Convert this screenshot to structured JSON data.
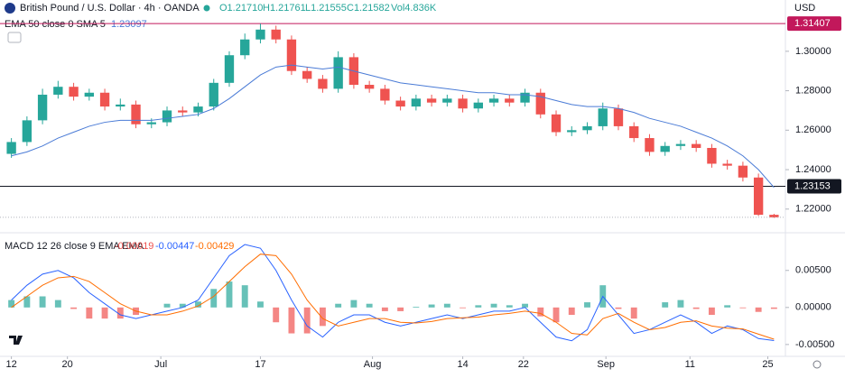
{
  "header": {
    "symbol": "British Pound / U.S. Dollar · 4h · OANDA",
    "ohlc": [
      "O1.21710",
      "H1.21761",
      "L1.21555",
      "C1.21582",
      "Vol4.836K"
    ],
    "currency": "USD"
  },
  "chart_data": [
    {
      "type": "candlestick",
      "up_color": "#26a69a",
      "down_color": "#ef5350",
      "open": [
        1.248,
        1.254,
        1.265,
        1.278,
        1.282,
        1.277,
        1.279,
        1.272,
        1.273,
        1.263,
        1.264,
        1.27,
        1.269,
        1.272,
        1.284,
        1.298,
        1.306,
        1.311,
        1.306,
        1.29,
        1.286,
        1.281,
        1.297,
        1.283,
        1.281,
        1.275,
        1.272,
        1.276,
        1.274,
        1.276,
        1.271,
        1.274,
        1.276,
        1.274,
        1.279,
        1.268,
        1.259,
        1.26,
        1.262,
        1.271,
        1.262,
        1.256,
        1.249,
        1.252,
        1.253,
        1.251,
        1.243,
        1.242,
        1.236,
        1.2171
      ],
      "high": [
        1.256,
        1.267,
        1.281,
        1.285,
        1.284,
        1.281,
        1.281,
        1.276,
        1.275,
        1.266,
        1.272,
        1.272,
        1.274,
        1.286,
        1.3,
        1.309,
        1.314,
        1.313,
        1.308,
        1.292,
        1.288,
        1.3,
        1.299,
        1.285,
        1.283,
        1.277,
        1.278,
        1.278,
        1.278,
        1.278,
        1.276,
        1.278,
        1.278,
        1.281,
        1.281,
        1.27,
        1.262,
        1.264,
        1.274,
        1.273,
        1.264,
        1.258,
        1.254,
        1.255,
        1.255,
        1.253,
        1.245,
        1.244,
        1.238,
        1.21761
      ],
      "low": [
        1.246,
        1.252,
        1.263,
        1.276,
        1.275,
        1.275,
        1.27,
        1.27,
        1.261,
        1.261,
        1.262,
        1.267,
        1.267,
        1.27,
        1.282,
        1.296,
        1.304,
        1.304,
        1.288,
        1.284,
        1.279,
        1.279,
        1.281,
        1.279,
        1.273,
        1.27,
        1.27,
        1.272,
        1.272,
        1.269,
        1.269,
        1.272,
        1.272,
        1.272,
        1.266,
        1.257,
        1.257,
        1.258,
        1.26,
        1.26,
        1.254,
        1.247,
        1.247,
        1.25,
        1.249,
        1.241,
        1.24,
        1.234,
        1.2165,
        1.21555
      ],
      "close": [
        1.254,
        1.265,
        1.278,
        1.282,
        1.277,
        1.279,
        1.272,
        1.273,
        1.263,
        1.264,
        1.27,
        1.269,
        1.272,
        1.284,
        1.298,
        1.306,
        1.311,
        1.306,
        1.29,
        1.286,
        1.281,
        1.297,
        1.283,
        1.281,
        1.275,
        1.272,
        1.276,
        1.274,
        1.276,
        1.271,
        1.274,
        1.276,
        1.274,
        1.279,
        1.268,
        1.259,
        1.26,
        1.262,
        1.271,
        1.262,
        1.256,
        1.249,
        1.252,
        1.253,
        1.251,
        1.243,
        1.242,
        1.236,
        1.2171,
        1.21582
      ],
      "ema": {
        "name": "EMA 50 close 0 SMA 5",
        "color": "#4a7bd6",
        "values": [
          1.247,
          1.249,
          1.252,
          1.256,
          1.259,
          1.262,
          1.264,
          1.265,
          1.265,
          1.265,
          1.266,
          1.267,
          1.268,
          1.271,
          1.276,
          1.282,
          1.288,
          1.292,
          1.293,
          1.292,
          1.291,
          1.292,
          1.29,
          1.288,
          1.286,
          1.284,
          1.283,
          1.282,
          1.281,
          1.28,
          1.279,
          1.279,
          1.278,
          1.278,
          1.277,
          1.275,
          1.273,
          1.272,
          1.272,
          1.271,
          1.269,
          1.266,
          1.264,
          1.262,
          1.259,
          1.256,
          1.252,
          1.247,
          1.24,
          1.23097
        ]
      },
      "levels": [
        {
          "value": 1.31407,
          "color": "#c2185b"
        },
        {
          "value": 1.23153,
          "color": "#131722"
        }
      ],
      "xlim": [
        -0.5,
        49.5
      ],
      "xticks": [
        {
          "value": 0,
          "label": "12"
        },
        {
          "value": 3.6,
          "label": "20"
        },
        {
          "value": 9.6,
          "label": "Jul"
        },
        {
          "value": 16,
          "label": "17"
        },
        {
          "value": 23.2,
          "label": "Aug"
        },
        {
          "value": 29,
          "label": "14"
        },
        {
          "value": 32.9,
          "label": "22"
        },
        {
          "value": 38.2,
          "label": "Sep"
        },
        {
          "value": 43.6,
          "label": "11"
        },
        {
          "value": 48.6,
          "label": "25"
        }
      ],
      "ylim": [
        1.208,
        1.326
      ],
      "yticks": [
        {
          "value": 1.22,
          "label": "1.22000"
        },
        {
          "value": 1.24,
          "label": "1.24000"
        },
        {
          "value": 1.26,
          "label": "1.26000"
        },
        {
          "value": 1.28,
          "label": "1.28000"
        },
        {
          "value": 1.3,
          "label": "1.30000"
        }
      ]
    },
    {
      "type": "macd",
      "name": "MACD 12 26 close 9 EMA EMA",
      "histogram": {
        "up_color": "#26a69a",
        "down_color": "#ef5350",
        "values": [
          0.001,
          0.0015,
          0.0015,
          0.001,
          -0.0002,
          -0.0015,
          -0.0015,
          -0.0015,
          -0.001,
          0.0,
          0.0005,
          0.0005,
          0.0008,
          0.0025,
          0.0035,
          0.003,
          0.0008,
          -0.002,
          -0.0035,
          -0.0035,
          -0.0025,
          0.0005,
          0.001,
          0.0005,
          -0.0005,
          -0.0005,
          0.0001,
          0.0004,
          0.0005,
          -0.0001,
          0.0003,
          0.0005,
          0.0003,
          0.0005,
          -0.0012,
          -0.002,
          -0.001,
          0.0007,
          0.003,
          -0.0002,
          -0.0015,
          0.0,
          0.0007,
          0.001,
          -0.0002,
          -0.001,
          0.0003,
          -0.0001,
          -0.0006,
          -0.00019
        ]
      },
      "series": [
        {
          "color": "#2962ff",
          "values": [
            0.001,
            0.003,
            0.0045,
            0.005,
            0.004,
            0.002,
            0.0005,
            -0.001,
            -0.0015,
            -0.001,
            -0.0005,
            0.0,
            0.001,
            0.004,
            0.007,
            0.0085,
            0.008,
            0.005,
            0.001,
            -0.0025,
            -0.004,
            -0.002,
            -0.001,
            -0.001,
            -0.002,
            -0.0025,
            -0.002,
            -0.0015,
            -0.001,
            -0.0015,
            -0.001,
            -0.0005,
            -0.0005,
            0.0,
            -0.002,
            -0.004,
            -0.0045,
            -0.003,
            0.0015,
            -0.001,
            -0.0035,
            -0.003,
            -0.002,
            -0.001,
            -0.002,
            -0.0035,
            -0.0025,
            -0.003,
            -0.0042,
            -0.00447
          ]
        },
        {
          "color": "#ff6d00",
          "values": [
            0.0,
            0.0015,
            0.003,
            0.004,
            0.0042,
            0.0035,
            0.002,
            0.0005,
            -0.0005,
            -0.001,
            -0.001,
            -0.0005,
            0.0002,
            0.0015,
            0.0035,
            0.0055,
            0.0072,
            0.007,
            0.0045,
            0.001,
            -0.0015,
            -0.0025,
            -0.002,
            -0.0015,
            -0.0015,
            -0.002,
            -0.0021,
            -0.0019,
            -0.0015,
            -0.0014,
            -0.0013,
            -0.001,
            -0.0008,
            -0.0005,
            -0.0008,
            -0.002,
            -0.0035,
            -0.0037,
            -0.0015,
            -0.0008,
            -0.002,
            -0.003,
            -0.0027,
            -0.002,
            -0.0018,
            -0.0025,
            -0.0028,
            -0.0029,
            -0.0036,
            -0.00429
          ]
        }
      ],
      "ylim": [
        -0.0066,
        0.0096
      ],
      "yticks": [
        {
          "value": -0.005,
          "label": "-0.00500"
        },
        {
          "value": 0,
          "label": "0.00000"
        },
        {
          "value": 0.005,
          "label": "0.00500"
        }
      ]
    }
  ]
}
